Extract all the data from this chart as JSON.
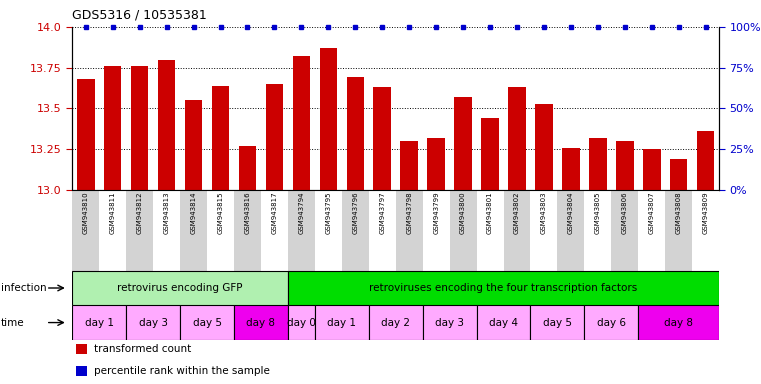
{
  "title": "GDS5316 / 10535381",
  "samples": [
    "GSM943810",
    "GSM943811",
    "GSM943812",
    "GSM943813",
    "GSM943814",
    "GSM943815",
    "GSM943816",
    "GSM943817",
    "GSM943794",
    "GSM943795",
    "GSM943796",
    "GSM943797",
    "GSM943798",
    "GSM943799",
    "GSM943800",
    "GSM943801",
    "GSM943802",
    "GSM943803",
    "GSM943804",
    "GSM943805",
    "GSM943806",
    "GSM943807",
    "GSM943808",
    "GSM943809"
  ],
  "bar_values": [
    13.68,
    13.76,
    13.76,
    13.8,
    13.55,
    13.64,
    13.27,
    13.65,
    13.82,
    13.87,
    13.69,
    13.63,
    13.3,
    13.32,
    13.57,
    13.44,
    13.63,
    13.53,
    13.26,
    13.32,
    13.3,
    13.25,
    13.19,
    13.36
  ],
  "percentile_values": [
    100,
    100,
    100,
    100,
    100,
    100,
    100,
    100,
    100,
    100,
    100,
    100,
    100,
    100,
    100,
    100,
    100,
    100,
    100,
    100,
    100,
    100,
    100,
    100
  ],
  "bar_color": "#cc0000",
  "percentile_color": "#0000cc",
  "ylim_left": [
    13.0,
    14.0
  ],
  "ylim_right": [
    0,
    100
  ],
  "yticks_left": [
    13.0,
    13.25,
    13.5,
    13.75,
    14.0
  ],
  "yticks_right": [
    0,
    25,
    50,
    75,
    100
  ],
  "ytick_labels_right": [
    "0%",
    "25%",
    "50%",
    "75%",
    "100%"
  ],
  "background_color": "#ffffff",
  "infection_groups": [
    {
      "label": "retrovirus encoding GFP",
      "start": 0,
      "end": 8,
      "color": "#b0f0b0"
    },
    {
      "label": "retroviruses encoding the four transcription factors",
      "start": 8,
      "end": 24,
      "color": "#00dd00"
    }
  ],
  "time_groups": [
    {
      "label": "day 1",
      "start": 0,
      "end": 2,
      "color": "#ffaaff"
    },
    {
      "label": "day 3",
      "start": 2,
      "end": 4,
      "color": "#ffaaff"
    },
    {
      "label": "day 5",
      "start": 4,
      "end": 6,
      "color": "#ffaaff"
    },
    {
      "label": "day 8",
      "start": 6,
      "end": 8,
      "color": "#ee00ee"
    },
    {
      "label": "day 0",
      "start": 8,
      "end": 9,
      "color": "#ffaaff"
    },
    {
      "label": "day 1",
      "start": 9,
      "end": 11,
      "color": "#ffaaff"
    },
    {
      "label": "day 2",
      "start": 11,
      "end": 13,
      "color": "#ffaaff"
    },
    {
      "label": "day 3",
      "start": 13,
      "end": 15,
      "color": "#ffaaff"
    },
    {
      "label": "day 4",
      "start": 15,
      "end": 17,
      "color": "#ffaaff"
    },
    {
      "label": "day 5",
      "start": 17,
      "end": 19,
      "color": "#ffaaff"
    },
    {
      "label": "day 6",
      "start": 19,
      "end": 21,
      "color": "#ffaaff"
    },
    {
      "label": "day 8",
      "start": 21,
      "end": 24,
      "color": "#ee00ee"
    }
  ],
  "legend_items": [
    {
      "label": "transformed count",
      "color": "#cc0000"
    },
    {
      "label": "percentile rank within the sample",
      "color": "#0000cc"
    }
  ],
  "tick_bg_even": "#d3d3d3",
  "tick_bg_odd": "#ffffff"
}
